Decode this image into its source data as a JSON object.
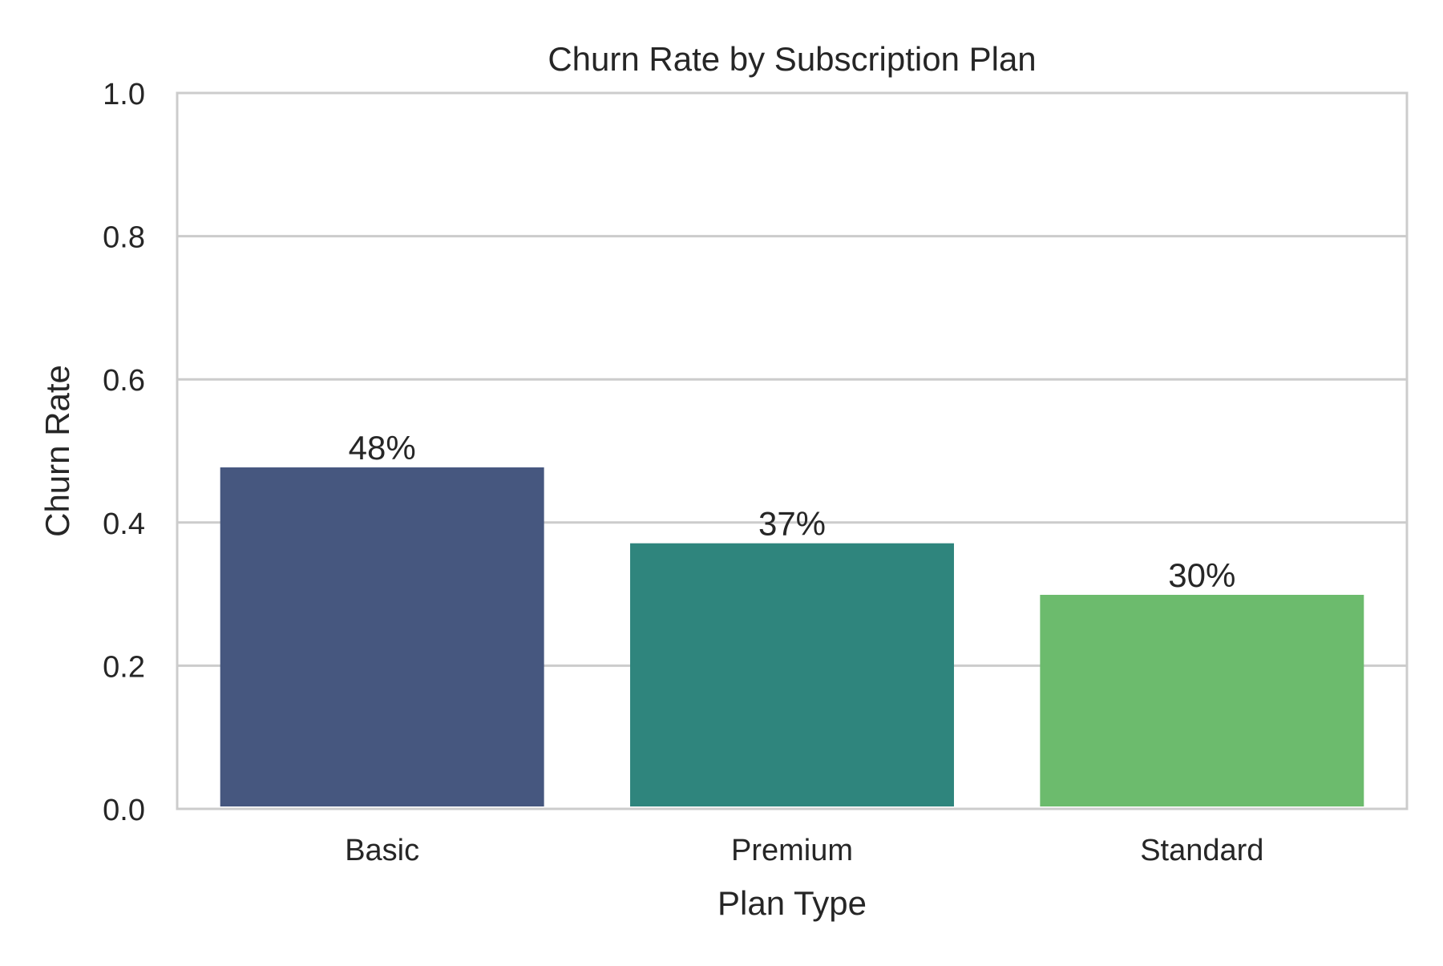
{
  "chart_data": {
    "type": "bar",
    "title": "Churn Rate by Subscription Plan",
    "xlabel": "Plan Type",
    "ylabel": "Churn Rate",
    "categories": [
      "Basic",
      "Premium",
      "Standard"
    ],
    "values": [
      0.477,
      0.371,
      0.299
    ],
    "data_labels": [
      "48%",
      "37%",
      "30%"
    ],
    "ylim": [
      0,
      1.0
    ],
    "yticks": [
      0.0,
      0.2,
      0.4,
      0.6,
      0.8,
      1.0
    ],
    "ytick_labels": [
      "0.0",
      "0.2",
      "0.4",
      "0.6",
      "0.8",
      "1.0"
    ],
    "grid": "horizontal",
    "colors": [
      "#46577f",
      "#2f857d",
      "#6cbb6d"
    ]
  }
}
